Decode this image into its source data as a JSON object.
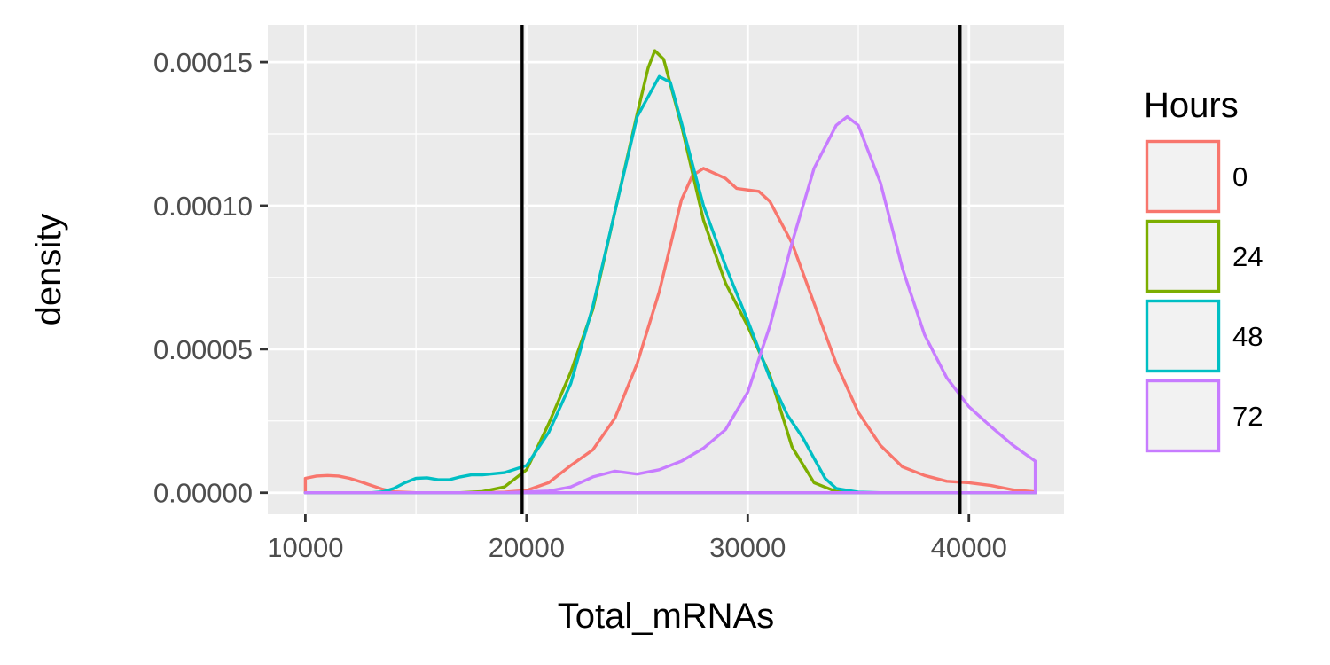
{
  "chart_data": {
    "type": "area",
    "xlabel": "Total_mRNAs",
    "ylabel": "density",
    "xlim": [
      8300,
      44300
    ],
    "ylim": [
      -7.5e-06,
      0.000163
    ],
    "x_ticks": [
      10000,
      20000,
      30000,
      40000
    ],
    "x_tick_labels": [
      "10000",
      "20000",
      "30000",
      "40000"
    ],
    "y_ticks": [
      0,
      5e-05,
      0.0001,
      0.00015
    ],
    "y_tick_labels": [
      "0.00000",
      "0.00005",
      "0.00010",
      "0.00015"
    ],
    "grid": true,
    "legend": {
      "title": "Hours",
      "position": "right"
    },
    "vlines": [
      19800,
      39600
    ],
    "series": [
      {
        "name": "0",
        "color": "#F8766D",
        "points": [
          [
            10000,
            5e-06
          ],
          [
            10500,
            5.8e-06
          ],
          [
            11000,
            6e-06
          ],
          [
            11500,
            5.8e-06
          ],
          [
            12000,
            5e-06
          ],
          [
            12500,
            3.8e-06
          ],
          [
            13000,
            2.5e-06
          ],
          [
            13500,
            1.2e-06
          ],
          [
            14000,
            3e-07
          ],
          [
            15000,
            0
          ],
          [
            18000,
            0
          ],
          [
            19000,
            2e-07
          ],
          [
            20000,
            8e-07
          ],
          [
            21000,
            3.5e-06
          ],
          [
            22000,
            9.5e-06
          ],
          [
            23000,
            1.5e-05
          ],
          [
            24000,
            2.6e-05
          ],
          [
            25000,
            4.5e-05
          ],
          [
            26000,
            7e-05
          ],
          [
            27000,
            0.000102
          ],
          [
            27500,
            0.0001105
          ],
          [
            28000,
            0.000113
          ],
          [
            29000,
            0.0001095
          ],
          [
            29500,
            0.000106
          ],
          [
            30000,
            0.0001055
          ],
          [
            30500,
            0.000105
          ],
          [
            31000,
            0.0001015
          ],
          [
            32000,
            8.7e-05
          ],
          [
            33000,
            6.6e-05
          ],
          [
            34000,
            4.5e-05
          ],
          [
            35000,
            2.8e-05
          ],
          [
            36000,
            1.65e-05
          ],
          [
            37000,
            9e-06
          ],
          [
            38000,
            6e-06
          ],
          [
            39000,
            4e-06
          ],
          [
            40000,
            3.5e-06
          ],
          [
            41000,
            2.5e-06
          ],
          [
            42000,
            1e-06
          ],
          [
            43000,
            3e-07
          ]
        ]
      },
      {
        "name": "24",
        "color": "#7CAE00",
        "points": [
          [
            10000,
            0
          ],
          [
            17000,
            0
          ],
          [
            18000,
            4e-07
          ],
          [
            19000,
            2e-06
          ],
          [
            20000,
            8e-06
          ],
          [
            21000,
            2.4e-05
          ],
          [
            22000,
            4.2e-05
          ],
          [
            23000,
            6.4e-05
          ],
          [
            24000,
            9.8e-05
          ],
          [
            25000,
            0.000132
          ],
          [
            25500,
            0.000148
          ],
          [
            25800,
            0.000154
          ],
          [
            26200,
            0.000151
          ],
          [
            27000,
            0.000128
          ],
          [
            28000,
            9.5e-05
          ],
          [
            29000,
            7.3e-05
          ],
          [
            30000,
            5.8e-05
          ],
          [
            31000,
            4.1e-05
          ],
          [
            32000,
            1.6e-05
          ],
          [
            33000,
            3.5e-06
          ],
          [
            34000,
            4e-07
          ],
          [
            35000,
            0
          ],
          [
            43000,
            0
          ]
        ]
      },
      {
        "name": "48",
        "color": "#00BFC4",
        "points": [
          [
            10000,
            0
          ],
          [
            13000,
            0
          ],
          [
            13500,
            3e-07
          ],
          [
            14000,
            1.5e-06
          ],
          [
            14500,
            3.5e-06
          ],
          [
            15000,
            5e-06
          ],
          [
            15500,
            5.2e-06
          ],
          [
            16000,
            4.5e-06
          ],
          [
            16500,
            4.5e-06
          ],
          [
            17000,
            5.5e-06
          ],
          [
            17500,
            6.2e-06
          ],
          [
            18000,
            6.2e-06
          ],
          [
            19000,
            7e-06
          ],
          [
            20000,
            9.5e-06
          ],
          [
            21000,
            2.1e-05
          ],
          [
            22000,
            3.8e-05
          ],
          [
            23000,
            6.5e-05
          ],
          [
            24000,
            9.8e-05
          ],
          [
            25000,
            0.000131
          ],
          [
            26000,
            0.000145
          ],
          [
            26500,
            0.000143
          ],
          [
            27000,
            0.000129
          ],
          [
            28000,
            0.0001
          ],
          [
            29000,
            7.9e-05
          ],
          [
            30000,
            6e-05
          ],
          [
            31000,
            4e-05
          ],
          [
            31800,
            2.7e-05
          ],
          [
            32500,
            1.9e-05
          ],
          [
            33000,
            1.2e-05
          ],
          [
            33500,
            5e-06
          ],
          [
            34000,
            1.5e-06
          ],
          [
            35000,
            2e-07
          ],
          [
            36000,
            0
          ],
          [
            43000,
            0
          ]
        ]
      },
      {
        "name": "72",
        "color": "#C77CFF",
        "points": [
          [
            10000,
            0
          ],
          [
            19000,
            0
          ],
          [
            21000,
            6e-07
          ],
          [
            22000,
            2e-06
          ],
          [
            23000,
            5.5e-06
          ],
          [
            24000,
            7.5e-06
          ],
          [
            25000,
            6.5e-06
          ],
          [
            26000,
            8e-06
          ],
          [
            27000,
            1.1e-05
          ],
          [
            28000,
            1.55e-05
          ],
          [
            29000,
            2.2e-05
          ],
          [
            30000,
            3.5e-05
          ],
          [
            31000,
            5.8e-05
          ],
          [
            32000,
            8.7e-05
          ],
          [
            33000,
            0.000113
          ],
          [
            34000,
            0.000128
          ],
          [
            34500,
            0.000131
          ],
          [
            35000,
            0.000128
          ],
          [
            36000,
            0.000108
          ],
          [
            37000,
            7.8e-05
          ],
          [
            38000,
            5.5e-05
          ],
          [
            39000,
            4e-05
          ],
          [
            40000,
            3e-05
          ],
          [
            41000,
            2.3e-05
          ],
          [
            42000,
            1.65e-05
          ],
          [
            43000,
            1.1e-05
          ],
          [
            43000,
            0
          ]
        ]
      }
    ]
  }
}
